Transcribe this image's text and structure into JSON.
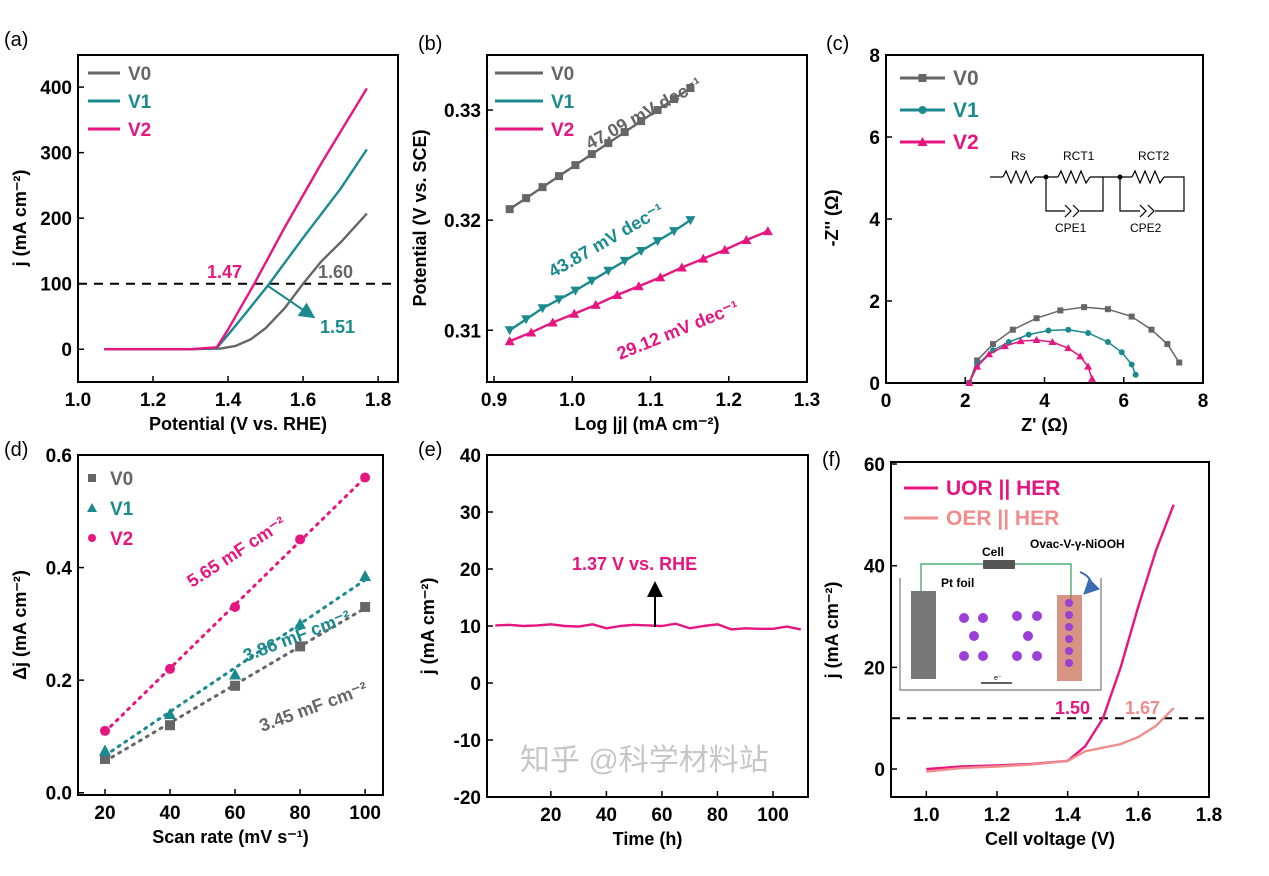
{
  "colors": {
    "V0": "#666666",
    "V1": "#1a8a8f",
    "V2": "#e6157f",
    "UOR": "#e6157f",
    "OER": "#f08c8c",
    "axis": "#000000",
    "wire": "#2e9e5a"
  },
  "watermark": "知乎 @科学材料站",
  "chart_data": [
    {
      "id": "a",
      "panel_label": "(a)",
      "type": "line",
      "xlabel": "Potential (V vs. RHE)",
      "ylabel": "j (mA cm⁻²)",
      "xlim": [
        1.0,
        1.853
      ],
      "ylim": [
        -50,
        449
      ],
      "xticks": [
        1.0,
        1.2,
        1.4,
        1.6,
        1.8
      ],
      "xtick_labels": [
        "1.0",
        "1.2",
        "1.4",
        "1.6",
        "1.8"
      ],
      "yticks": [
        0,
        100,
        200,
        300,
        400
      ],
      "ytick_labels": [
        "0",
        "100",
        "200",
        "300",
        "400"
      ],
      "reference_line": 100,
      "series": [
        {
          "name": "V0",
          "x": [
            1.07,
            1.3,
            1.38,
            1.42,
            1.46,
            1.5,
            1.55,
            1.6,
            1.65,
            1.7,
            1.77
          ],
          "y": [
            0,
            0,
            1,
            5,
            15,
            32,
            62,
            100,
            135,
            163,
            207
          ]
        },
        {
          "name": "V1",
          "x": [
            1.07,
            1.3,
            1.37,
            1.4,
            1.45,
            1.51,
            1.6,
            1.7,
            1.77
          ],
          "y": [
            0,
            0,
            2,
            22,
            57,
            100,
            170,
            245,
            305
          ]
        },
        {
          "name": "V2",
          "x": [
            1.07,
            1.3,
            1.37,
            1.4,
            1.47,
            1.55,
            1.65,
            1.77
          ],
          "y": [
            0,
            0,
            3,
            30,
            100,
            185,
            285,
            398
          ]
        }
      ],
      "annotations": [
        "1.47",
        "1.60",
        "1.51"
      ]
    },
    {
      "id": "b",
      "panel_label": "(b)",
      "type": "scatter",
      "xlabel": "Log |j| (mA cm⁻²)",
      "ylabel": "Potential (V vs. SCE)",
      "xlim": [
        0.891,
        1.3
      ],
      "ylim": [
        0.3053,
        0.335
      ],
      "xticks": [
        0.9,
        1.0,
        1.1,
        1.2,
        1.3
      ],
      "xtick_labels": [
        "0.9",
        "1.0",
        "1.1",
        "1.2",
        "1.3"
      ],
      "yticks": [
        0.31,
        0.32,
        0.33
      ],
      "ytick_labels": [
        "0.31",
        "0.32",
        "0.33"
      ],
      "series": [
        {
          "name": "V0",
          "marker": "square",
          "x": [
            0.92,
            0.941,
            0.962,
            0.983,
            1.004,
            1.025,
            1.046,
            1.067,
            1.088,
            1.109,
            1.13,
            1.151
          ],
          "y": [
            0.321,
            0.322,
            0.323,
            0.324,
            0.325,
            0.326,
            0.327,
            0.328,
            0.329,
            0.33,
            0.331,
            0.332
          ]
        },
        {
          "name": "V1",
          "marker": "triangle-down",
          "x": [
            0.92,
            0.941,
            0.962,
            0.983,
            1.004,
            1.025,
            1.046,
            1.067,
            1.088,
            1.109,
            1.13,
            1.151
          ],
          "y": [
            0.31,
            0.311,
            0.312,
            0.3128,
            0.3136,
            0.3145,
            0.3154,
            0.3163,
            0.3172,
            0.3181,
            0.319,
            0.32
          ]
        },
        {
          "name": "V2",
          "marker": "triangle-up",
          "x": [
            0.92,
            0.9475,
            0.975,
            1.0025,
            1.03,
            1.0575,
            1.085,
            1.1125,
            1.14,
            1.1675,
            1.195,
            1.2225,
            1.25
          ],
          "y": [
            0.309,
            0.3098,
            0.3107,
            0.3115,
            0.3123,
            0.3132,
            0.314,
            0.3148,
            0.3157,
            0.3165,
            0.3173,
            0.3182,
            0.319
          ]
        }
      ],
      "annotations": [
        "47.09 mV dec⁻¹",
        "43.87 mV dec⁻¹",
        "29.12 mV dec⁻¹"
      ]
    },
    {
      "id": "c",
      "panel_label": "(c)",
      "type": "scatter",
      "xlabel": "Z' (Ω)",
      "ylabel": "-Z'' (Ω)",
      "xlim": [
        0,
        8
      ],
      "ylim": [
        0,
        8
      ],
      "xticks": [
        0,
        2,
        4,
        6,
        8
      ],
      "xtick_labels": [
        "0",
        "2",
        "4",
        "6",
        "8"
      ],
      "yticks": [
        0,
        2,
        4,
        6,
        8
      ],
      "ytick_labels": [
        "0",
        "2",
        "4",
        "6",
        "8"
      ],
      "series": [
        {
          "name": "V0",
          "marker": "square",
          "x": [
            2.1,
            2.3,
            2.7,
            3.2,
            3.8,
            4.4,
            5.0,
            5.6,
            6.2,
            6.7,
            7.1,
            7.4
          ],
          "y": [
            0,
            0.55,
            0.95,
            1.3,
            1.58,
            1.77,
            1.85,
            1.8,
            1.62,
            1.3,
            0.95,
            0.5
          ]
        },
        {
          "name": "V1",
          "marker": "circle",
          "x": [
            2.1,
            2.3,
            2.7,
            3.1,
            3.6,
            4.1,
            4.6,
            5.1,
            5.6,
            5.95,
            6.2,
            6.3
          ],
          "y": [
            0,
            0.45,
            0.8,
            1.0,
            1.18,
            1.28,
            1.3,
            1.22,
            1.0,
            0.75,
            0.45,
            0.2
          ]
        },
        {
          "name": "V2",
          "marker": "triangle-up",
          "x": [
            2.1,
            2.3,
            2.6,
            3.0,
            3.4,
            3.8,
            4.2,
            4.6,
            4.9,
            5.1,
            5.2
          ],
          "y": [
            0,
            0.4,
            0.7,
            0.9,
            1.02,
            1.05,
            1.0,
            0.85,
            0.65,
            0.4,
            0.1
          ]
        }
      ],
      "circuit": {
        "rs": "Rs",
        "rct1": "RCT1",
        "rct2": "RCT2",
        "cpe1": "CPE1",
        "cpe2": "CPE2"
      }
    },
    {
      "id": "d",
      "panel_label": "(d)",
      "type": "scatter",
      "xlabel": "Scan rate (mV s⁻¹)",
      "ylabel": "Δj (mA cm⁻²)",
      "xlim": [
        11.7,
        105.5
      ],
      "ylim": [
        -0.004,
        0.6
      ],
      "xticks": [
        20,
        40,
        60,
        80,
        100
      ],
      "xtick_labels": [
        "20",
        "40",
        "60",
        "80",
        "100"
      ],
      "yticks": [
        0.0,
        0.2,
        0.4,
        0.6
      ],
      "ytick_labels": [
        "0.0",
        "0.2",
        "0.4",
        "0.6"
      ],
      "series": [
        {
          "name": "V0",
          "marker": "square",
          "x": [
            20,
            40,
            60,
            80,
            100
          ],
          "y": [
            0.06,
            0.12,
            0.19,
            0.26,
            0.33
          ]
        },
        {
          "name": "V1",
          "marker": "triangle-up",
          "x": [
            20,
            40,
            60,
            80,
            100
          ],
          "y": [
            0.075,
            0.14,
            0.21,
            0.3,
            0.385
          ]
        },
        {
          "name": "V2",
          "marker": "circle",
          "x": [
            20,
            40,
            60,
            80,
            100
          ],
          "y": [
            0.11,
            0.22,
            0.33,
            0.45,
            0.56
          ]
        }
      ],
      "annotations": [
        "5.65 mF cm⁻²",
        "3.86 mF cm⁻²",
        "3.45 mF cm⁻²"
      ]
    },
    {
      "id": "e",
      "panel_label": "(e)",
      "type": "line",
      "xlabel": "Time (h)",
      "ylabel": "j (mA cm⁻²)",
      "xlim": [
        -3,
        112.6
      ],
      "ylim": [
        -20,
        40
      ],
      "xticks": [
        20,
        40,
        60,
        80,
        100
      ],
      "xtick_labels": [
        "20",
        "40",
        "60",
        "80",
        "100"
      ],
      "yticks": [
        -20,
        -10,
        0,
        10,
        20,
        30,
        40
      ],
      "ytick_labels": [
        "-20",
        "-10",
        "0",
        "10",
        "20",
        "30",
        "40"
      ],
      "series": [
        {
          "name": "V2",
          "x": [
            0,
            5,
            10,
            15,
            20,
            25,
            30,
            35,
            40,
            45,
            50,
            55,
            60,
            65,
            70,
            75,
            80,
            85,
            90,
            95,
            100,
            105,
            110
          ],
          "y": [
            10.1,
            10.2,
            10.0,
            10.1,
            10.3,
            10.0,
            9.9,
            10.3,
            9.6,
            10.0,
            10.2,
            10.1,
            10.0,
            10.4,
            9.6,
            10.0,
            10.3,
            9.4,
            9.6,
            9.5,
            9.5,
            9.9,
            9.4
          ]
        }
      ],
      "annotations": [
        "1.37 V vs. RHE"
      ]
    },
    {
      "id": "f",
      "panel_label": "(f)",
      "type": "line",
      "xlabel": "Cell voltage (V)",
      "ylabel": "j (mA cm⁻²)",
      "xlim": [
        0.9,
        1.8
      ],
      "ylim": [
        -5.5,
        60.4
      ],
      "xticks": [
        1.0,
        1.2,
        1.4,
        1.6,
        1.8
      ],
      "xtick_labels": [
        "1.0",
        "1.2",
        "1.4",
        "1.6",
        "1.8"
      ],
      "yticks": [
        0,
        20,
        40,
        60
      ],
      "ytick_labels": [
        "0",
        "20",
        "40",
        "60"
      ],
      "reference_line": 10,
      "series": [
        {
          "name": "UOR || HER",
          "color_key": "UOR",
          "x": [
            1.0,
            1.1,
            1.2,
            1.3,
            1.4,
            1.45,
            1.5,
            1.55,
            1.6,
            1.65,
            1.7
          ],
          "y": [
            0,
            0.5,
            0.7,
            1.0,
            1.6,
            4.5,
            10,
            20,
            32,
            43,
            52
          ]
        },
        {
          "name": "OER || HER",
          "color_key": "OER",
          "x": [
            1.0,
            1.1,
            1.2,
            1.3,
            1.4,
            1.45,
            1.5,
            1.55,
            1.6,
            1.65,
            1.7
          ],
          "y": [
            -0.5,
            0.2,
            0.5,
            0.9,
            1.6,
            3.5,
            4.2,
            4.9,
            6.3,
            8.5,
            12
          ]
        }
      ],
      "annotations": [
        "1.50",
        "1.67"
      ],
      "inset": {
        "cell": "Cell",
        "pt_foil": "Pt foil",
        "catalyst": "Ovac-V-γ-NiOOH",
        "electron": "e⁻"
      }
    }
  ]
}
